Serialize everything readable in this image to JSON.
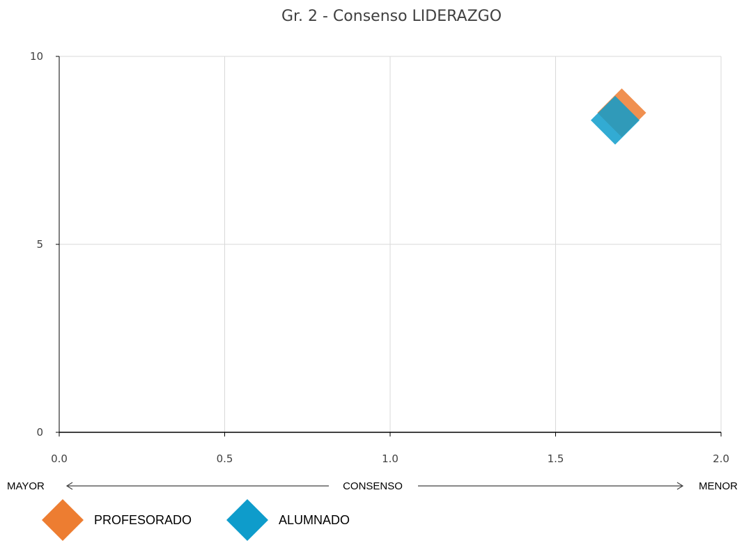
{
  "chart_data": {
    "type": "scatter",
    "title": "Gr. 2 - Consenso LIDERAZGO",
    "xlim": [
      0,
      2
    ],
    "ylim": [
      0,
      10
    ],
    "x_ticks": [
      "0.0",
      "0.5",
      "1.0",
      "1.5",
      "2.0"
    ],
    "y_ticks": [
      "0",
      "5",
      "10"
    ],
    "grid": true,
    "axis_annotation": {
      "left": "MAYOR",
      "center": "CONSENSO",
      "right": "MENOR"
    },
    "legend_position": "bottom-left",
    "series": [
      {
        "name": "PROFESORADO",
        "color": "#ED7D31",
        "marker": "diamond",
        "x": [
          1.7
        ],
        "y": [
          8.5
        ]
      },
      {
        "name": "ALUMNADO",
        "color": "#0E9CCB",
        "marker": "diamond",
        "x": [
          1.68
        ],
        "y": [
          8.3
        ]
      }
    ]
  }
}
